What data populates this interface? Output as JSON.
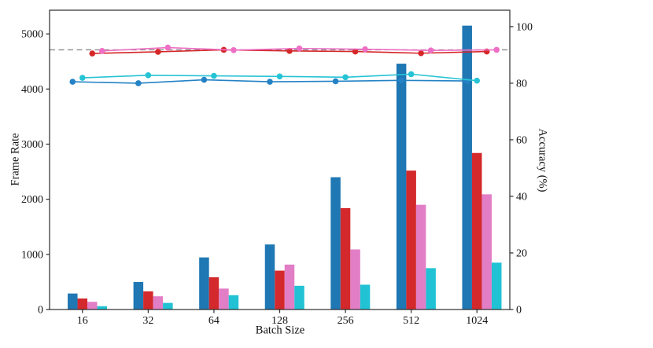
{
  "figure": {
    "background": "#ffffff",
    "text_color": "#111111",
    "spine_color": "#2b2b2b"
  },
  "chart_data": {
    "type": "bar+line dual-axis",
    "title": "",
    "xlabel": "Batch Size",
    "ylabel_left": "Frame Rate",
    "ylabel_right": "Accuracy (%)",
    "categories": [
      "16",
      "32",
      "64",
      "128",
      "256",
      "512",
      "1024"
    ],
    "left_axis": {
      "label": "Frame Rate",
      "ticks": [
        0,
        1000,
        2000,
        3000,
        4000,
        5000
      ],
      "tick_labels": [
        "0",
        "1000",
        "2000",
        "3000",
        "4000",
        "5000"
      ],
      "lim": [
        0,
        5430
      ]
    },
    "right_axis": {
      "label": "Accuracy (%)",
      "ticks": [
        0,
        20,
        40,
        60,
        80,
        100
      ],
      "tick_labels": [
        "0",
        "20",
        "40",
        "60",
        "80",
        "100"
      ],
      "lim": [
        0,
        105.8
      ]
    },
    "bar_series": [
      {
        "name": "blue-bars",
        "color": "#1f77b4",
        "values": [
          290,
          500,
          945,
          1180,
          2400,
          4460,
          5150
        ]
      },
      {
        "name": "red-bars",
        "color": "#d3292c",
        "values": [
          200,
          330,
          585,
          705,
          1840,
          2520,
          2840
        ]
      },
      {
        "name": "pink-bars",
        "color": "#e27ec6",
        "values": [
          140,
          240,
          380,
          815,
          1090,
          1900,
          2090
        ]
      },
      {
        "name": "cyan-bars",
        "color": "#20c2d4",
        "values": [
          60,
          120,
          260,
          430,
          450,
          750,
          850
        ]
      }
    ],
    "line_series": [
      {
        "name": "blue-line",
        "color": "#2482c5",
        "values": [
          80.5,
          80.0,
          81.2,
          80.5,
          80.7,
          81.0,
          80.8
        ]
      },
      {
        "name": "cyan-line",
        "color": "#26c3d5",
        "values": [
          81.9,
          82.8,
          82.6,
          82.4,
          82.1,
          83.2,
          80.9
        ]
      },
      {
        "name": "red-line",
        "color": "#d62728",
        "values": [
          90.5,
          91.1,
          91.8,
          91.4,
          91.2,
          90.6,
          91.2
        ]
      },
      {
        "name": "pink-line",
        "color": "#ee6fc5",
        "values": [
          91.4,
          92.6,
          91.7,
          92.3,
          92.0,
          91.6,
          91.8
        ]
      }
    ],
    "reference_line": {
      "axis": "accuracy",
      "value": 91.8,
      "style": "dashed",
      "color": "#8c8c8c"
    },
    "legend": "none",
    "grid": false
  }
}
